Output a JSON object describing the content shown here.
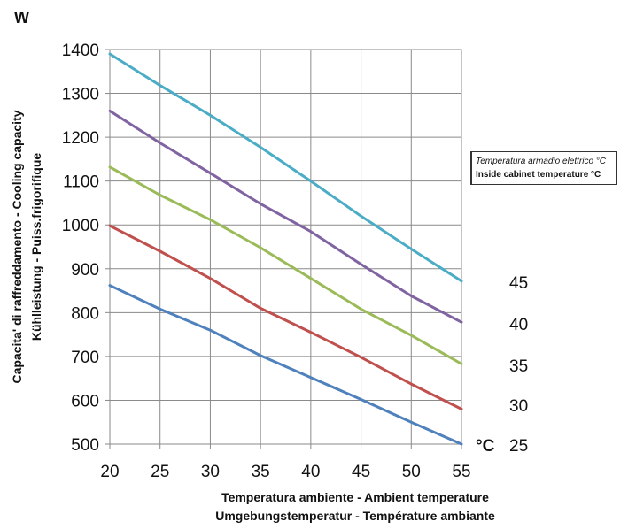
{
  "chart_data": {
    "type": "line",
    "y_unit_label": "W",
    "ylabel_lines": [
      "Capacita' di raffreddamento - Cooling capacity",
      "Kühlleistung - Puiss.frigorifique"
    ],
    "xlabel_lines": [
      "Temperatura ambiente - Ambient temperature",
      "Umgebungstemperatur - Température ambiante"
    ],
    "x_unit_label": "°C",
    "legend_title_lines": [
      "Temperatura armadio elettrico °C",
      "Inside cabinet temperature °C"
    ],
    "xlim": [
      20,
      55
    ],
    "ylim": [
      500,
      1400
    ],
    "x_ticks": [
      "20",
      "25",
      "30",
      "35",
      "40",
      "45",
      "50",
      "55"
    ],
    "y_ticks": [
      "500",
      "600",
      "700",
      "800",
      "900",
      "1000",
      "1100",
      "1200",
      "1300",
      "1400"
    ],
    "grid": true,
    "x": [
      20,
      25,
      30,
      35,
      40,
      45,
      50,
      55
    ],
    "series": [
      {
        "name": "45",
        "color": "#4BACC6",
        "values": [
          1390,
          1318,
          1250,
          1177,
          1100,
          1020,
          945,
          872
        ]
      },
      {
        "name": "40",
        "color": "#8064A2",
        "values": [
          1260,
          1187,
          1118,
          1048,
          985,
          910,
          838,
          778
        ]
      },
      {
        "name": "35",
        "color": "#9BBB59",
        "values": [
          1132,
          1068,
          1012,
          948,
          878,
          808,
          748,
          683
        ]
      },
      {
        "name": "30",
        "color": "#C0504D",
        "values": [
          998,
          940,
          878,
          810,
          755,
          698,
          637,
          580
        ]
      },
      {
        "name": "25",
        "color": "#4F81BD",
        "values": [
          862,
          808,
          760,
          702,
          652,
          602,
          550,
          500
        ]
      }
    ]
  }
}
